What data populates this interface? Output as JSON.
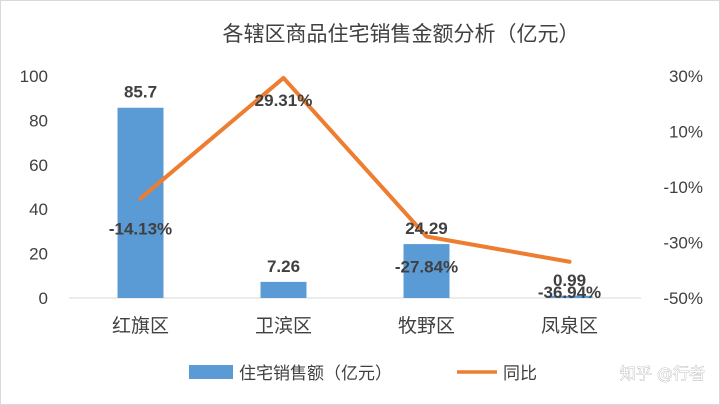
{
  "watermark": "知乎 @行者",
  "chart_data": {
    "type": "bar",
    "title": "各辖区商品住宅销售金额分析（亿元）",
    "categories": [
      "红旗区",
      "卫滨区",
      "牧野区",
      "凤泉区"
    ],
    "series": [
      {
        "name": "住宅销售额（亿元）",
        "type": "bar",
        "axis": "left",
        "color": "#5b9bd5",
        "values": [
          85.7,
          7.26,
          24.29,
          0.99
        ],
        "labels": [
          "85.7",
          "7.26",
          "24.29",
          "0.99"
        ]
      },
      {
        "name": "同比",
        "type": "line",
        "axis": "right",
        "color": "#ed7d31",
        "values": [
          -14.13,
          29.31,
          -27.84,
          -36.94
        ],
        "labels": [
          "-14.13%",
          "29.31%",
          "-27.84%",
          "-36.94%"
        ]
      }
    ],
    "y_left": {
      "min": 0,
      "max": 100,
      "ticks": [
        "0",
        "20",
        "40",
        "60",
        "80",
        "100"
      ]
    },
    "y_right": {
      "min": -50,
      "max": 30,
      "ticks": [
        "30%",
        "10%",
        "-10%",
        "-30%",
        "-50%"
      ]
    },
    "grid": false,
    "legend_position": "bottom"
  }
}
